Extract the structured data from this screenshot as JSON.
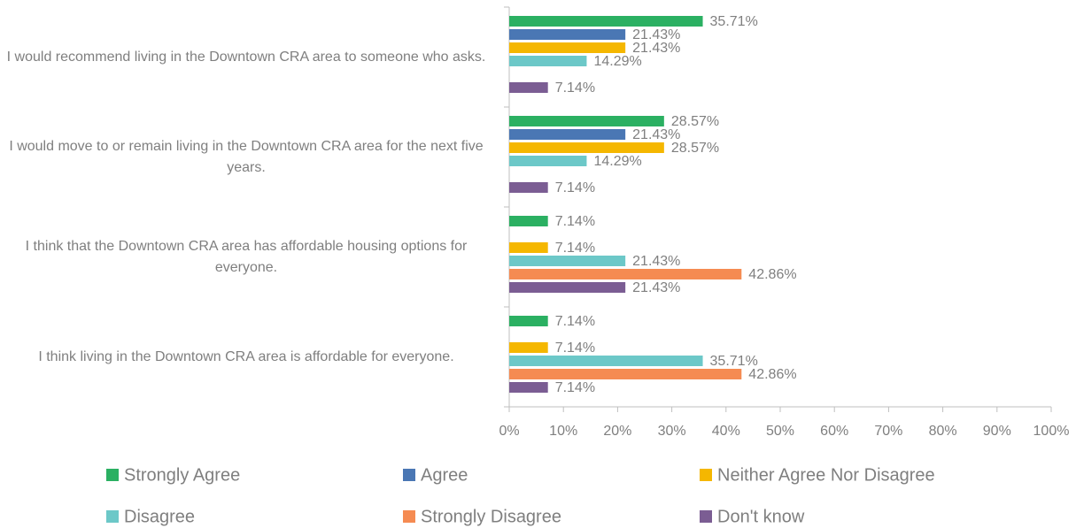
{
  "chart_data": {
    "type": "hbar",
    "categories": [
      "I would recommend living in the Downtown CRA area to someone who asks.",
      "I would move to or remain living in the Downtown CRA area for the next five years.",
      "I think that the Downtown CRA area has affordable housing options for everyone.",
      "I think living in the Downtown CRA area is affordable for everyone."
    ],
    "series": [
      {
        "name": "Strongly Agree",
        "color": "#2bb062",
        "values": [
          35.71,
          28.57,
          7.14,
          7.14
        ],
        "value_labels": [
          "35.71%",
          "28.57%",
          "7.14%",
          "7.14%"
        ]
      },
      {
        "name": "Agree",
        "color": "#4a77b4",
        "values": [
          21.43,
          21.43,
          null,
          null
        ],
        "value_labels": [
          "21.43%",
          "21.43%",
          null,
          null
        ]
      },
      {
        "name": "Neither Agree Nor Disagree",
        "color": "#f5b700",
        "values": [
          21.43,
          28.57,
          7.14,
          7.14
        ],
        "value_labels": [
          "21.43%",
          "28.57%",
          "7.14%",
          "7.14%"
        ]
      },
      {
        "name": "Disagree",
        "color": "#6cc8c8",
        "values": [
          14.29,
          14.29,
          21.43,
          35.71
        ],
        "value_labels": [
          "14.29%",
          "14.29%",
          "21.43%",
          "35.71%"
        ]
      },
      {
        "name": "Strongly Disagree",
        "color": "#f58b52",
        "values": [
          null,
          null,
          42.86,
          42.86
        ],
        "value_labels": [
          null,
          null,
          "42.86%",
          "42.86%"
        ]
      },
      {
        "name": "Don't know",
        "color": "#7b5d93",
        "values": [
          7.14,
          7.14,
          21.43,
          7.14
        ],
        "value_labels": [
          "7.14%",
          "7.14%",
          "21.43%",
          "7.14%"
        ]
      }
    ],
    "xlim": [
      0,
      100
    ],
    "xticks": [
      {
        "value": 0,
        "label": "0%"
      },
      {
        "value": 10,
        "label": "10%"
      },
      {
        "value": 20,
        "label": "20%"
      },
      {
        "value": 30,
        "label": "30%"
      },
      {
        "value": 40,
        "label": "40%"
      },
      {
        "value": 50,
        "label": "50%"
      },
      {
        "value": 60,
        "label": "60%"
      },
      {
        "value": 70,
        "label": "70%"
      },
      {
        "value": 80,
        "label": "80%"
      },
      {
        "value": 90,
        "label": "90%"
      },
      {
        "value": 100,
        "label": "100%"
      }
    ],
    "legend": "bottom"
  }
}
